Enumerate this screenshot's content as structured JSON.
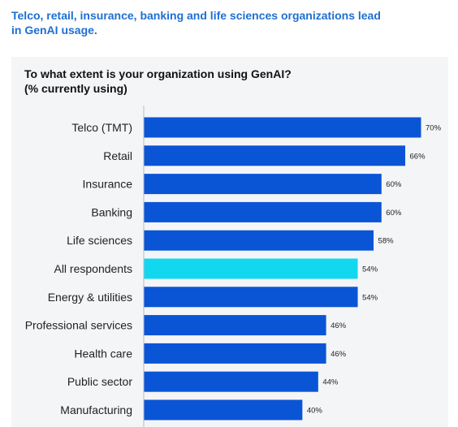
{
  "headline": "Telco, retail, insurance, banking and life sciences organizations lead in GenAI usage.",
  "chart_data": {
    "type": "bar",
    "orientation": "horizontal",
    "title": "To what extent is your organization using GenAI?",
    "subtitle": "(% currently using)",
    "categories": [
      "Telco (TMT)",
      "Retail",
      "Insurance",
      "Banking",
      "Life sciences",
      "All respondents",
      "Energy & utilities",
      "Professional services",
      "Health care",
      "Public sector",
      "Manufacturing"
    ],
    "values": [
      70,
      66,
      60,
      60,
      58,
      54,
      54,
      46,
      46,
      44,
      40
    ],
    "value_labels": [
      "70%",
      "66%",
      "60%",
      "60%",
      "58%",
      "54%",
      "54%",
      "46%",
      "46%",
      "44%",
      "40%"
    ],
    "highlight_index": 5,
    "colors": {
      "bar": "#0a55d6",
      "highlight": "#12d8ef",
      "axis": "#b8bcc4",
      "headline": "#1f6fd1"
    },
    "xlim": [
      0,
      70
    ],
    "grid": false,
    "legend": "none"
  }
}
